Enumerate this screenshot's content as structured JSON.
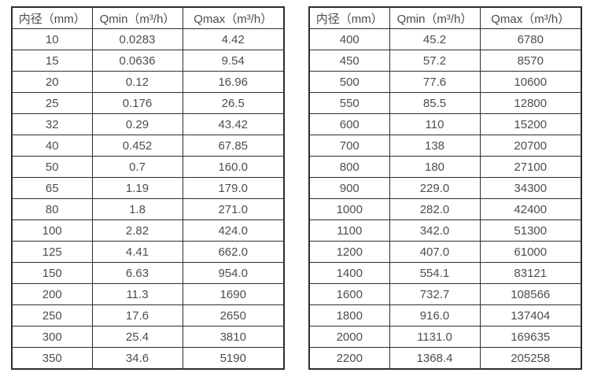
{
  "page": {
    "background_color": "#ffffff",
    "text_color": "#4d4d4d",
    "border_color": "#2e2e2e"
  },
  "chart_data": [
    {
      "type": "table",
      "title": "",
      "columns": [
        "内径（mm）",
        "Qmin（m³/h）",
        "Qmax（m³/h）"
      ],
      "rows": [
        [
          "10",
          "0.0283",
          "4.42"
        ],
        [
          "15",
          "0.0636",
          "9.54"
        ],
        [
          "20",
          "0.12",
          "16.96"
        ],
        [
          "25",
          "0.176",
          "26.5"
        ],
        [
          "32",
          "0.29",
          "43.42"
        ],
        [
          "40",
          "0.452",
          "67.85"
        ],
        [
          "50",
          "0.7",
          "160.0"
        ],
        [
          "65",
          "1.19",
          "179.0"
        ],
        [
          "80",
          "1.8",
          "271.0"
        ],
        [
          "100",
          "2.82",
          "424.0"
        ],
        [
          "125",
          "4.41",
          "662.0"
        ],
        [
          "150",
          "6.63",
          "954.0"
        ],
        [
          "200",
          "11.3",
          "1690"
        ],
        [
          "250",
          "17.6",
          "2650"
        ],
        [
          "300",
          "25.4",
          "3810"
        ],
        [
          "350",
          "34.6",
          "5190"
        ]
      ]
    },
    {
      "type": "table",
      "title": "",
      "columns": [
        "内径（mm）",
        "Qmin（m³/h）",
        "Qmax（m³/h）"
      ],
      "rows": [
        [
          "400",
          "45.2",
          "6780"
        ],
        [
          "450",
          "57.2",
          "8570"
        ],
        [
          "500",
          "77.6",
          "10600"
        ],
        [
          "550",
          "85.5",
          "12800"
        ],
        [
          "600",
          "110",
          "15200"
        ],
        [
          "700",
          "138",
          "20700"
        ],
        [
          "800",
          "180",
          "27100"
        ],
        [
          "900",
          "229.0",
          "34300"
        ],
        [
          "1000",
          "282.0",
          "42400"
        ],
        [
          "1100",
          "342.0",
          "51300"
        ],
        [
          "1200",
          "407.0",
          "61000"
        ],
        [
          "1400",
          "554.1",
          "83121"
        ],
        [
          "1600",
          "732.7",
          "108566"
        ],
        [
          "1800",
          "916.0",
          "137404"
        ],
        [
          "2000",
          "1131.0",
          "169635"
        ],
        [
          "2200",
          "1368.4",
          "205258"
        ]
      ]
    }
  ]
}
